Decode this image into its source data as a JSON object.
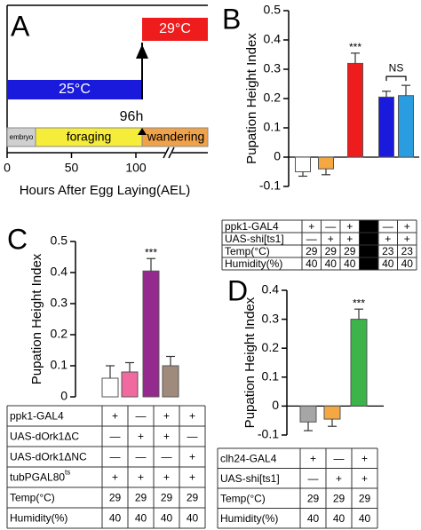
{
  "diagram": {
    "letter": "A",
    "hot_label": "29°C",
    "cool_label": "25°C",
    "time_label": "96h",
    "stages": [
      "embryo",
      "foraging",
      "wandering"
    ],
    "xticks": [
      0,
      50,
      100
    ],
    "xlabel": "Hours After Egg Laying(AEL)"
  },
  "chart_data": [
    {
      "type": "bar",
      "letter": "B",
      "ylabel": "Pupation Height Index",
      "values": [
        -0.05,
        -0.04,
        0.32,
        0.205,
        0.21
      ],
      "errors": [
        0.015,
        0.02,
        0.035,
        0.02,
        0.035
      ],
      "colors": [
        "#ffffff",
        "#f5a742",
        "#ee1c1c",
        "#1a1adc",
        "#2a9de0"
      ],
      "ylim": [
        -0.1,
        0.5
      ],
      "yticks": [
        -0.1,
        0,
        0.1,
        0.2,
        0.3,
        0.4,
        0.5
      ],
      "annotations": [
        "***",
        "NS"
      ],
      "table": {
        "rows": [
          {
            "label": "ppk1-GAL4",
            "cells": [
              "+",
              "—",
              "+",
              null,
              "—",
              "+"
            ]
          },
          {
            "label": "UAS-shi[ts1]",
            "cells": [
              "—",
              "+",
              "+",
              null,
              "+",
              "+"
            ]
          },
          {
            "label": "Temp(°C)",
            "cells": [
              "29",
              "29",
              "29",
              null,
              "23",
              "23"
            ]
          },
          {
            "label": "Humidity(%)",
            "cells": [
              "40",
              "40",
              "40",
              null,
              "40",
              "40"
            ]
          }
        ]
      }
    },
    {
      "type": "bar",
      "letter": "C",
      "ylabel": "Pupation Height Index",
      "values": [
        0.06,
        0.08,
        0.405,
        0.1
      ],
      "errors": [
        0.04,
        0.03,
        0.04,
        0.03
      ],
      "colors": [
        "#ffffff",
        "#f06aa0",
        "#942a8e",
        "#a08a7c"
      ],
      "ylim": [
        0,
        0.5
      ],
      "yticks": [
        0,
        0.1,
        0.2,
        0.3,
        0.4,
        0.5
      ],
      "annotations": [
        "***"
      ],
      "table": {
        "rows": [
          {
            "label": "ppk1-GAL4",
            "cells": [
              "+",
              "—",
              "+",
              "+"
            ]
          },
          {
            "label": "UAS-dOrk1ΔC",
            "cells": [
              "—",
              "+",
              "+",
              "—"
            ]
          },
          {
            "label": "UAS-dOrk1ΔNC",
            "cells": [
              "—",
              "—",
              "—",
              "+"
            ]
          },
          {
            "label": "tubPGAL80",
            "sup": "ts",
            "cells": [
              "+",
              "+",
              "+",
              "+"
            ]
          },
          {
            "label": "Temp(°C)",
            "cells": [
              "29",
              "29",
              "29",
              "29"
            ]
          },
          {
            "label": "Humidity(%)",
            "cells": [
              "40",
              "40",
              "40",
              "40"
            ]
          }
        ]
      }
    },
    {
      "type": "bar",
      "letter": "D",
      "ylabel": "Pupation Height Index",
      "values": [
        -0.055,
        -0.045,
        0.3
      ],
      "errors": [
        0.03,
        0.025,
        0.035
      ],
      "colors": [
        "#a6a6a6",
        "#f5a742",
        "#3cb44a"
      ],
      "ylim": [
        -0.1,
        0.4
      ],
      "yticks": [
        -0.1,
        0,
        0.1,
        0.2,
        0.3,
        0.4
      ],
      "annotations": [
        "***"
      ],
      "table": {
        "rows": [
          {
            "label": "clh24-GAL4",
            "cells": [
              "+",
              "—",
              "+"
            ]
          },
          {
            "label": "UAS-shi[ts1]",
            "cells": [
              "—",
              "+",
              "+"
            ]
          },
          {
            "label": "Temp(°C)",
            "cells": [
              "29",
              "29",
              "29"
            ]
          },
          {
            "label": "Humidity(%)",
            "cells": [
              "40",
              "40",
              "40"
            ]
          }
        ]
      }
    }
  ]
}
